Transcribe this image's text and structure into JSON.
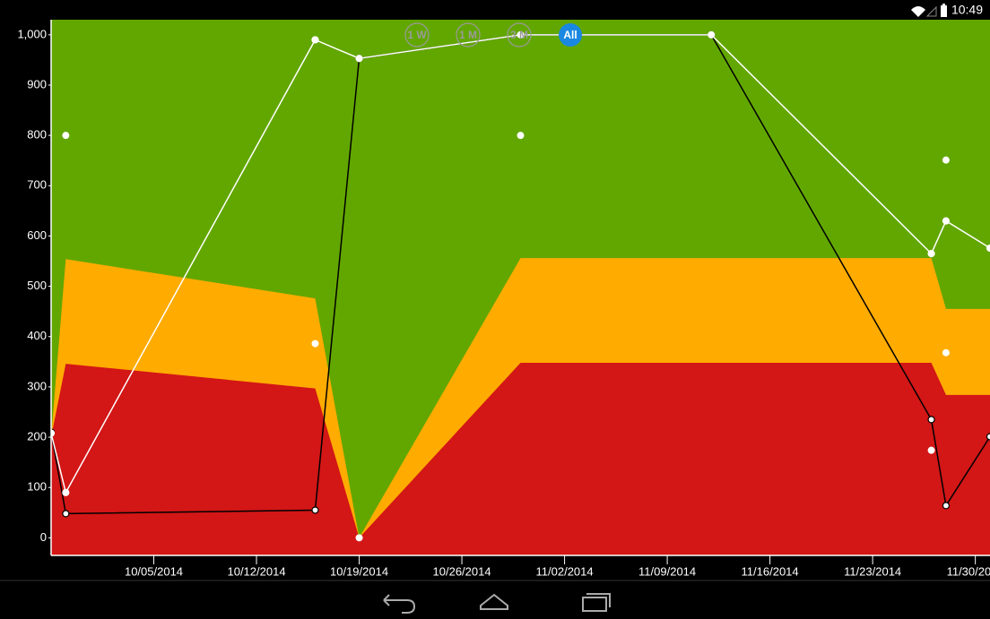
{
  "status_bar": {
    "time": "10:49"
  },
  "range_selector": {
    "buttons": [
      "1 W",
      "1 M",
      "3 M",
      "All"
    ],
    "selected_index": 3
  },
  "chart_data": {
    "type": "area",
    "x": [
      "2014-09-28",
      "2014-09-29",
      "2014-10-16",
      "2014-10-19",
      "2014-10-30",
      "2014-11-12",
      "2014-11-27",
      "2014-11-28",
      "2014-12-01"
    ],
    "xlim": [
      "2014-09-28",
      "2014-12-01"
    ],
    "xticks": [
      {
        "value": "2014-10-05",
        "label": "10/05/2014"
      },
      {
        "value": "2014-10-12",
        "label": "10/12/2014"
      },
      {
        "value": "2014-10-19",
        "label": "10/19/2014"
      },
      {
        "value": "2014-10-26",
        "label": "10/26/2014"
      },
      {
        "value": "2014-11-02",
        "label": "11/02/2014"
      },
      {
        "value": "2014-11-09",
        "label": "11/09/2014"
      },
      {
        "value": "2014-11-16",
        "label": "11/16/2014"
      },
      {
        "value": "2014-11-23",
        "label": "11/23/2014"
      },
      {
        "value": "2014-11-30",
        "label": "11/30/2014"
      }
    ],
    "ylim": [
      -35,
      1030
    ],
    "yticks": [
      0,
      100,
      200,
      300,
      400,
      500,
      600,
      700,
      800,
      900,
      {
        "value": 1000,
        "label": "1,000"
      }
    ],
    "background_color": "#62a700",
    "areas": [
      {
        "color": "#ffab00",
        "values": [
          200,
          554,
          476,
          0,
          556,
          556,
          556,
          455,
          455
        ]
      },
      {
        "color": "#d31616",
        "values": [
          200,
          346,
          297,
          0,
          348,
          348,
          348,
          284,
          284
        ]
      }
    ],
    "lines": [
      {
        "color": "#000000",
        "marker_fill": "#ffffff",
        "values": [
          210,
          48,
          55,
          953,
          1000,
          1000,
          235,
          64,
          201
        ]
      },
      {
        "color": "#ffffff",
        "marker_fill": "#ffffff",
        "values": [
          208,
          90,
          990,
          953,
          1000,
          1000,
          565,
          630,
          576
        ]
      }
    ],
    "points": {
      "color": "#ffffff",
      "x": [
        "2014-09-29",
        "2014-10-16",
        "2014-10-19",
        "2014-10-30",
        "2014-11-27",
        "2014-11-28",
        "2014-11-28"
      ],
      "values": [
        800,
        386,
        0,
        800,
        174,
        751,
        368
      ]
    }
  }
}
